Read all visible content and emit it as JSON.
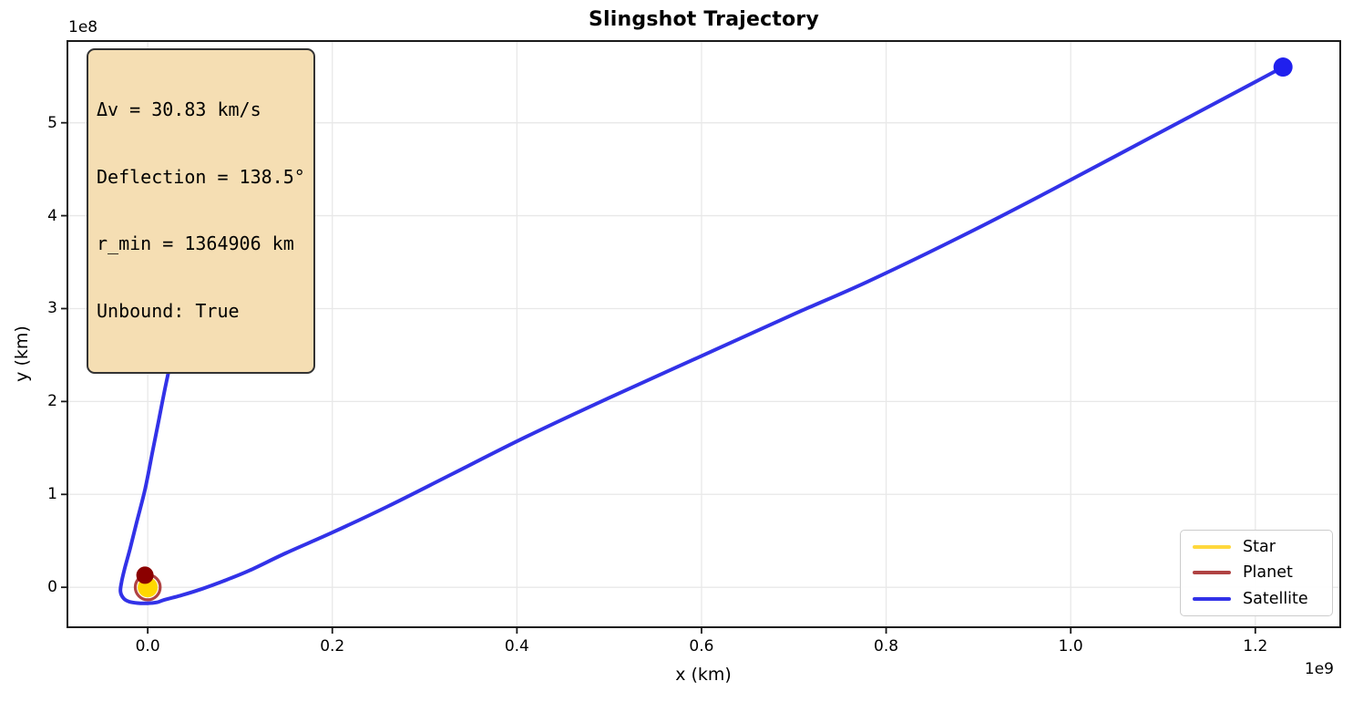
{
  "chart_data": {
    "type": "line",
    "title": "Slingshot Trajectory",
    "xlabel": "x (km)",
    "ylabel": "y (km)",
    "x_scale_offset": "1e9",
    "y_scale_offset": "1e8",
    "xlim": [
      -87000000,
      1292000000
    ],
    "ylim": [
      -43000000,
      588000000
    ],
    "grid": true,
    "grid_color": "#e8e8e8",
    "spine_color": "#1a1a1a",
    "xticks": {
      "values": [
        0,
        200000000,
        400000000,
        600000000,
        800000000,
        1000000000,
        1200000000
      ],
      "labels": [
        "0.0",
        "0.2",
        "0.4",
        "0.6",
        "0.8",
        "1.0",
        "1.2"
      ]
    },
    "yticks": {
      "values": [
        0,
        100000000,
        200000000,
        300000000,
        400000000,
        500000000
      ],
      "labels": [
        "0",
        "1",
        "2",
        "3",
        "4",
        "5"
      ]
    },
    "annotation": {
      "lines": [
        "Δv = 30.83 km/s",
        "Deflection = 138.5°",
        "r_min = 1364906 km",
        "Unbound: True"
      ],
      "bg_color": "#F5DEB3",
      "border_color": "#333333"
    },
    "legend": {
      "position": "lower right",
      "entries": [
        {
          "label": "Star",
          "color": "#FFD83C"
        },
        {
          "label": "Planet",
          "color": "#B04343"
        },
        {
          "label": "Satellite",
          "color": "#3232E8"
        }
      ]
    },
    "series": [
      {
        "name": "Star",
        "kind": "marker",
        "marker_color": "#FFD700",
        "position": [
          0,
          0
        ],
        "marker_px_radius": 11
      },
      {
        "name": "Planet",
        "kind": "orbit",
        "line_color": "#B04343",
        "marker_color": "#8B0000",
        "orbit_center": [
          0,
          0
        ],
        "orbit_radius_km": 13500000,
        "position": [
          -3000000,
          13000000
        ],
        "marker_px_radius": 9.5
      },
      {
        "name": "Satellite",
        "kind": "line",
        "color": "#3232E8",
        "marker_color": "#2020EE",
        "end_marker_px_radius": 10.5,
        "points": [
          [
            104000000,
            438000000
          ],
          [
            88000000,
            406000000
          ],
          [
            72000000,
            372000000
          ],
          [
            56000000,
            336000000
          ],
          [
            40000000,
            299000000
          ],
          [
            29000000,
            260000000
          ],
          [
            20000000,
            220000000
          ],
          [
            12000000,
            180000000
          ],
          [
            5000000,
            145000000
          ],
          [
            -3000000,
            105000000
          ],
          [
            -12000000,
            70000000
          ],
          [
            -19000000,
            42000000
          ],
          [
            -25000000,
            20000000
          ],
          [
            -28500000,
            5000000
          ],
          [
            -29500000,
            -5000000
          ],
          [
            -26000000,
            -12000000
          ],
          [
            -20000000,
            -15500000
          ],
          [
            -11000000,
            -17000000
          ],
          [
            0,
            -17200000
          ],
          [
            10000000,
            -16200000
          ],
          [
            18000000,
            -13500000
          ],
          [
            35000000,
            -9000000
          ],
          [
            55000000,
            -3000000
          ],
          [
            80000000,
            6000000
          ],
          [
            110000000,
            18000000
          ],
          [
            150000000,
            37000000
          ],
          [
            200000000,
            59000000
          ],
          [
            260000000,
            87000000
          ],
          [
            330000000,
            122000000
          ],
          [
            410000000,
            162000000
          ],
          [
            500000000,
            204000000
          ],
          [
            600000000,
            249000000
          ],
          [
            700000000,
            294000000
          ],
          [
            780000000,
            329000000
          ],
          [
            880000000,
            377000000
          ],
          [
            980000000,
            428000000
          ],
          [
            1090000000,
            486000000
          ],
          [
            1200000000,
            544000000
          ],
          [
            1230000000,
            560000000
          ]
        ]
      }
    ]
  }
}
